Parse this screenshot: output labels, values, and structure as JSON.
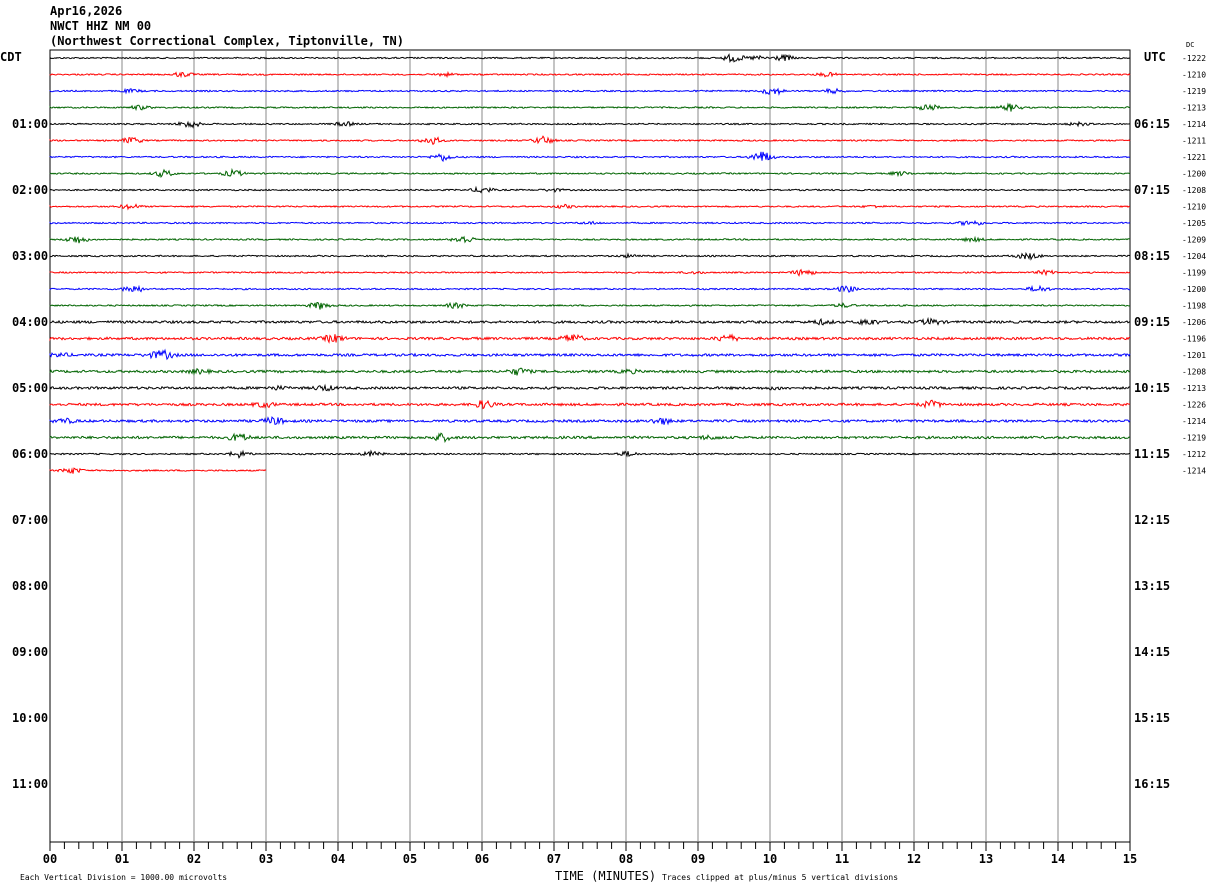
{
  "header": {
    "date": "Apr16,2026",
    "station": "NWCT HHZ NM 00",
    "location": "(Northwest Correctional Complex, Tiptonville, TN)"
  },
  "left_timezone": "CDT",
  "right_timezone": "UTC",
  "dc_label": "DC",
  "chart_data": {
    "type": "line",
    "title": "",
    "xlabel": "TIME (MINUTES)",
    "x_ticks": [
      "00",
      "01",
      "02",
      "03",
      "04",
      "05",
      "06",
      "07",
      "08",
      "09",
      "10",
      "11",
      "12",
      "13",
      "14",
      "15"
    ],
    "xlim": [
      0,
      15
    ],
    "grid": true,
    "left_hour_labels": [
      "01:00",
      "02:00",
      "03:00",
      "04:00",
      "05:00",
      "06:00",
      "07:00",
      "08:00",
      "09:00",
      "10:00",
      "11:00"
    ],
    "right_hour_labels": [
      "06:15",
      "07:15",
      "08:15",
      "09:15",
      "10:15",
      "11:15",
      "12:15",
      "13:15",
      "14:15",
      "15:15",
      "16:15"
    ],
    "trace_colors": [
      "#000000",
      "#ff0000",
      "#0000ff",
      "#006400"
    ],
    "dc_offsets": [
      "-1222",
      "-1210",
      "-1219",
      "-1213",
      "-1214",
      "-1211",
      "-1221",
      "-1200",
      "-1208",
      "-1210",
      "-1205",
      "-1209",
      "-1204",
      "-1199",
      "-1200",
      "-1198",
      "-1206",
      "-1196",
      "-1201",
      "-1208",
      "-1213",
      "-1226",
      "-1214",
      "-1219",
      "-1212",
      "-1214"
    ],
    "last_trace_end_minute": 3
  },
  "footer": {
    "scale_note": "Each Vertical Division = 1000.00 microvolts",
    "clip_note": "Traces clipped at plus/minus 5 vertical divisions"
  }
}
